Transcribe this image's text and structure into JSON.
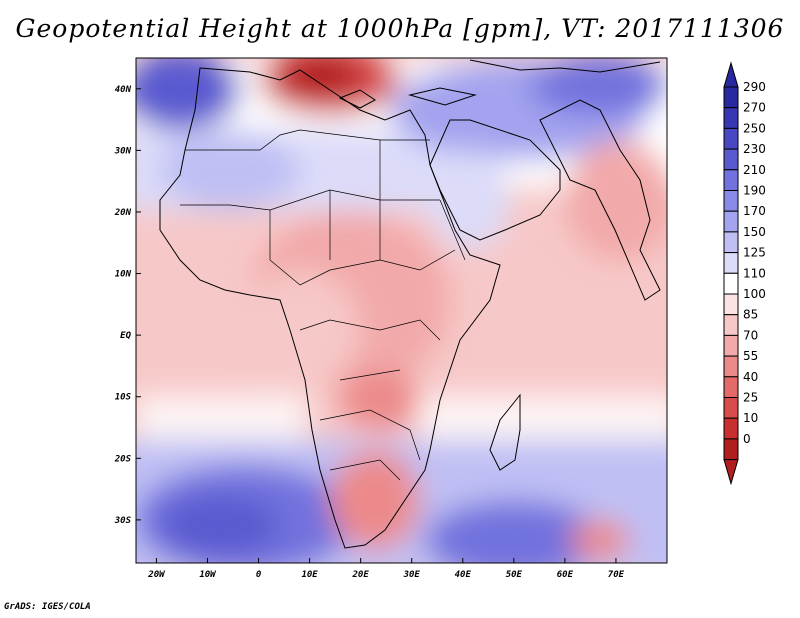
{
  "title": "Geopotential Height at 1000hPa [gpm], VT: 2017111306",
  "credit": "GrADS: IGES/COLA",
  "map": {
    "lon_range": [
      -24,
      80
    ],
    "lat_range": [
      -37,
      45
    ],
    "x_ticks": [
      {
        "lon": -20,
        "label": "20W"
      },
      {
        "lon": -10,
        "label": "10W"
      },
      {
        "lon": 0,
        "label": "0"
      },
      {
        "lon": 10,
        "label": "10E"
      },
      {
        "lon": 20,
        "label": "20E"
      },
      {
        "lon": 30,
        "label": "30E"
      },
      {
        "lon": 40,
        "label": "40E"
      },
      {
        "lon": 50,
        "label": "50E"
      },
      {
        "lon": 60,
        "label": "60E"
      },
      {
        "lon": 70,
        "label": "70E"
      }
    ],
    "y_ticks": [
      {
        "lat": 40,
        "label": "40N"
      },
      {
        "lat": 30,
        "label": "30N"
      },
      {
        "lat": 20,
        "label": "20N"
      },
      {
        "lat": 10,
        "label": "10N"
      },
      {
        "lat": 0,
        "label": "EQ"
      },
      {
        "lat": -10,
        "label": "10S"
      },
      {
        "lat": -20,
        "label": "20S"
      },
      {
        "lat": -30,
        "label": "30S"
      }
    ]
  },
  "colorbar": {
    "levels": [
      {
        "label": "290",
        "color": "#28289f"
      },
      {
        "label": "270",
        "color": "#3737b4"
      },
      {
        "label": "250",
        "color": "#4848c3"
      },
      {
        "label": "230",
        "color": "#5a5ad0"
      },
      {
        "label": "210",
        "color": "#7272de"
      },
      {
        "label": "190",
        "color": "#8a8ae8"
      },
      {
        "label": "170",
        "color": "#a3a3ef"
      },
      {
        "label": "150",
        "color": "#bfbff4"
      },
      {
        "label": "125",
        "color": "#dcdcf9"
      },
      {
        "label": "110",
        "color": "#ffffff"
      },
      {
        "label": "100",
        "color": "#fbe3e3"
      },
      {
        "label": "85",
        "color": "#f7c8c8"
      },
      {
        "label": "70",
        "color": "#f2a9a9"
      },
      {
        "label": "55",
        "color": "#ec8a8a"
      },
      {
        "label": "40",
        "color": "#e46a6a"
      },
      {
        "label": "25",
        "color": "#d84c4c"
      },
      {
        "label": "10",
        "color": "#c83030"
      },
      {
        "label": "0",
        "color": "#b01e1e"
      }
    ],
    "bottom_color": "#b01e1e"
  }
}
